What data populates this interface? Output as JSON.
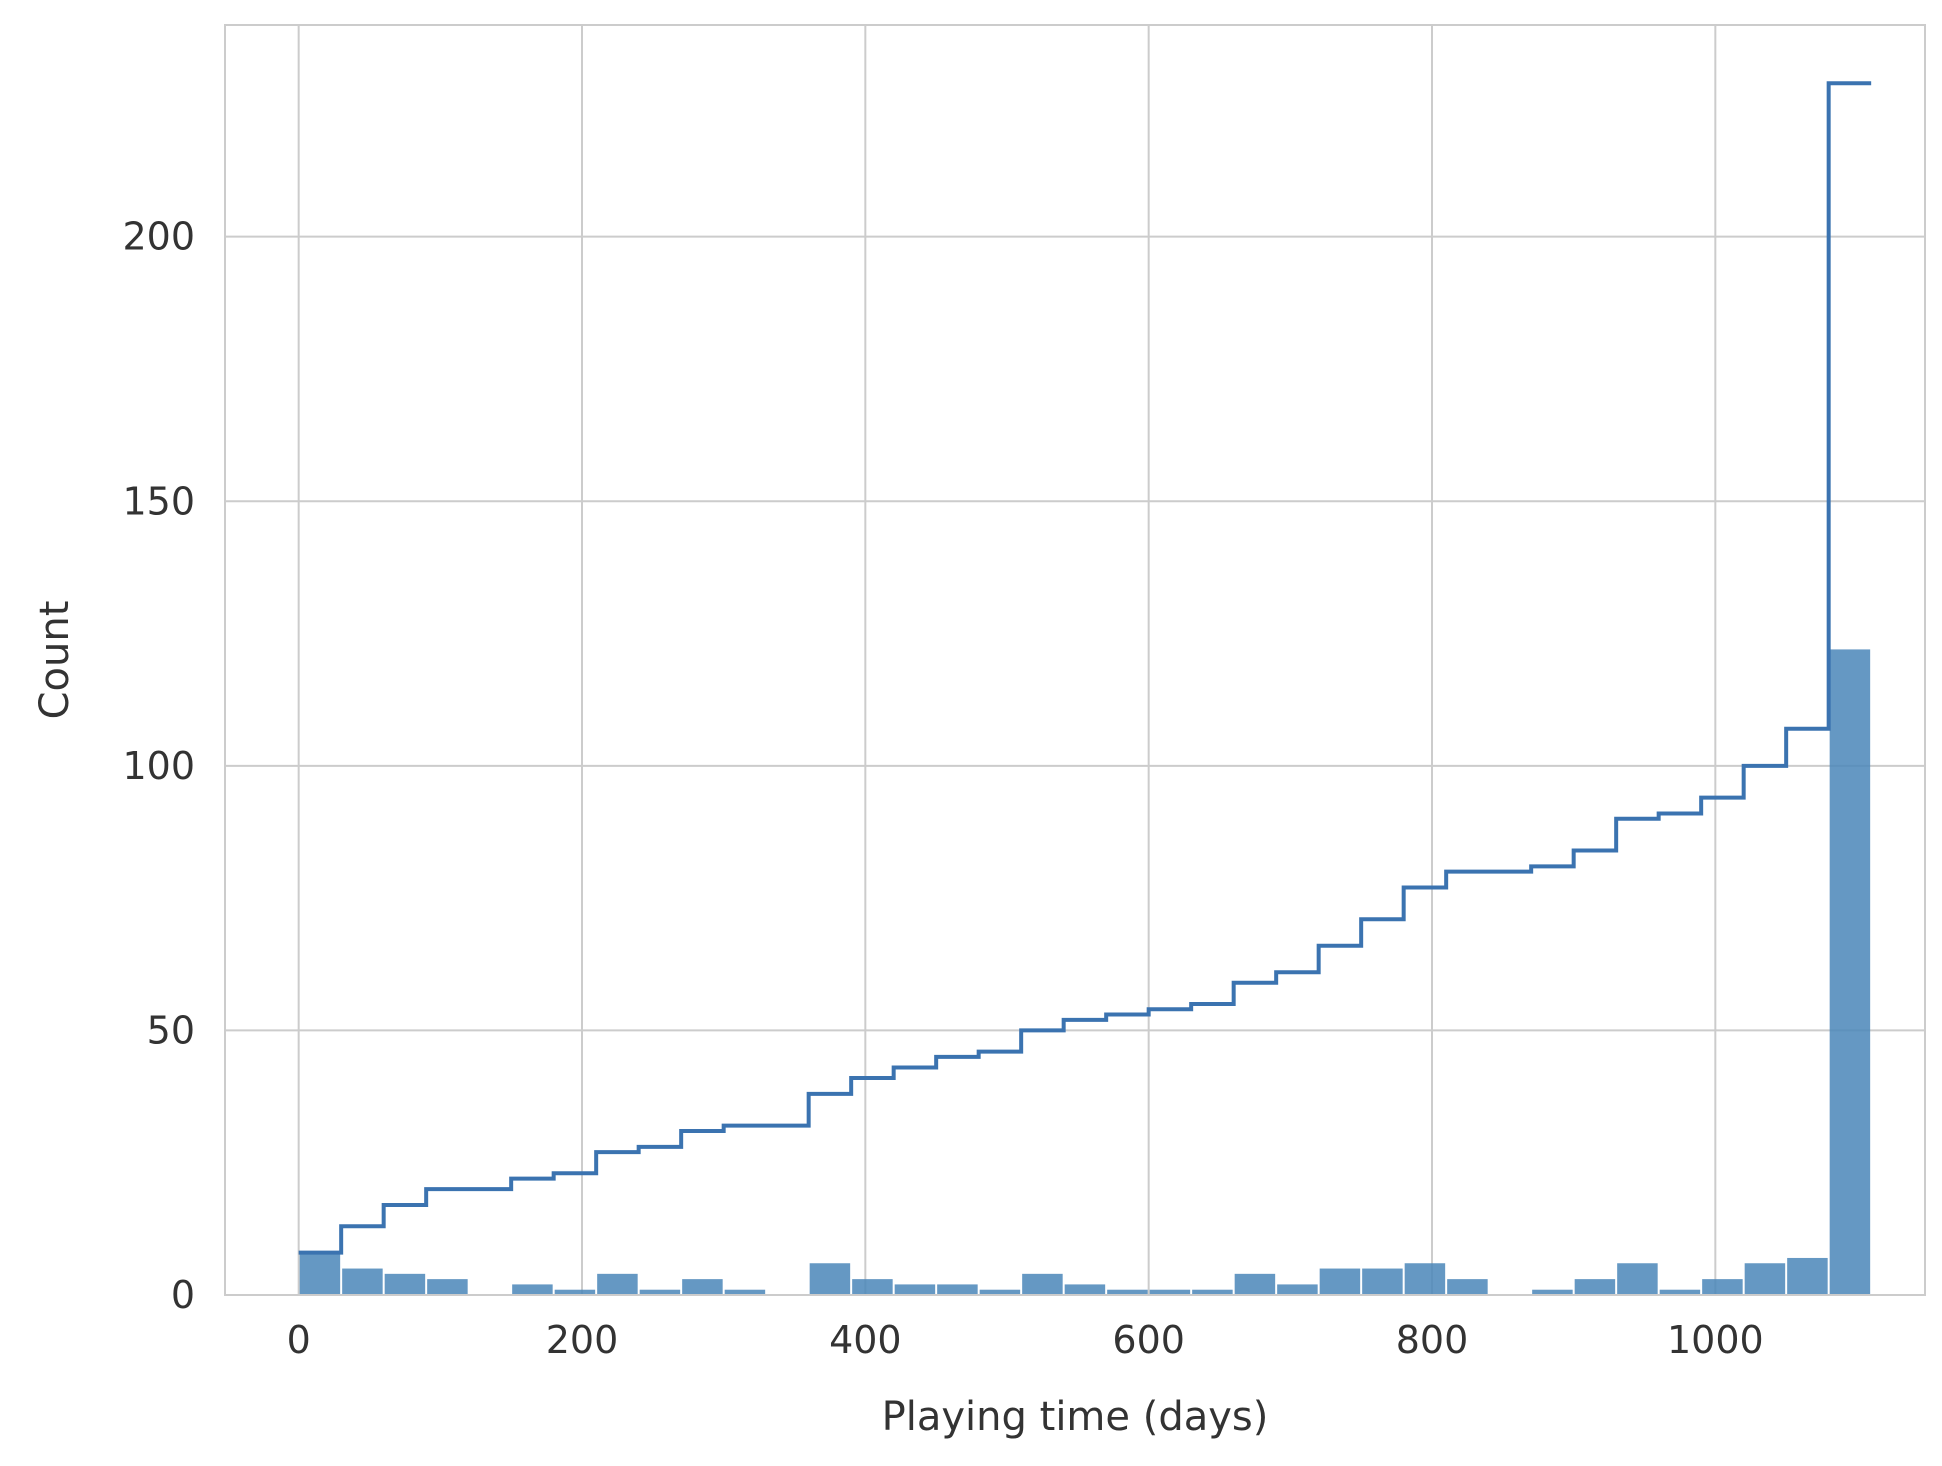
{
  "chart_data": {
    "type": "bar",
    "xlabel": "Playing time (days)",
    "ylabel": "Count",
    "xlim": [
      -52,
      1148
    ],
    "ylim": [
      0,
      240
    ],
    "grid": true,
    "bar_color": "#4a86b8",
    "step_color": "#3b73b0",
    "xticks": [
      {
        "value": 0,
        "label": "0"
      },
      {
        "value": 200,
        "label": "200"
      },
      {
        "value": 400,
        "label": "400"
      },
      {
        "value": 600,
        "label": "600"
      },
      {
        "value": 800,
        "label": "800"
      },
      {
        "value": 1000,
        "label": "1000"
      }
    ],
    "yticks": [
      {
        "value": 0,
        "label": "0"
      },
      {
        "value": 50,
        "label": "50"
      },
      {
        "value": 100,
        "label": "100"
      },
      {
        "value": 150,
        "label": "150"
      },
      {
        "value": 200,
        "label": "200"
      }
    ],
    "bin_width": 30,
    "bin_start": 0,
    "counts": [
      8,
      5,
      4,
      3,
      0,
      2,
      1,
      4,
      1,
      3,
      1,
      0,
      6,
      3,
      2,
      2,
      1,
      4,
      2,
      1,
      1,
      1,
      4,
      2,
      5,
      5,
      6,
      3,
      0,
      1,
      3,
      6,
      1,
      3,
      6,
      7,
      122
    ],
    "cumulative_counts": [
      8,
      13,
      17,
      20,
      20,
      22,
      23,
      27,
      28,
      31,
      32,
      32,
      38,
      41,
      43,
      45,
      46,
      50,
      52,
      53,
      54,
      55,
      59,
      61,
      66,
      71,
      77,
      80,
      80,
      81,
      84,
      90,
      91,
      94,
      100,
      107,
      229
    ]
  }
}
